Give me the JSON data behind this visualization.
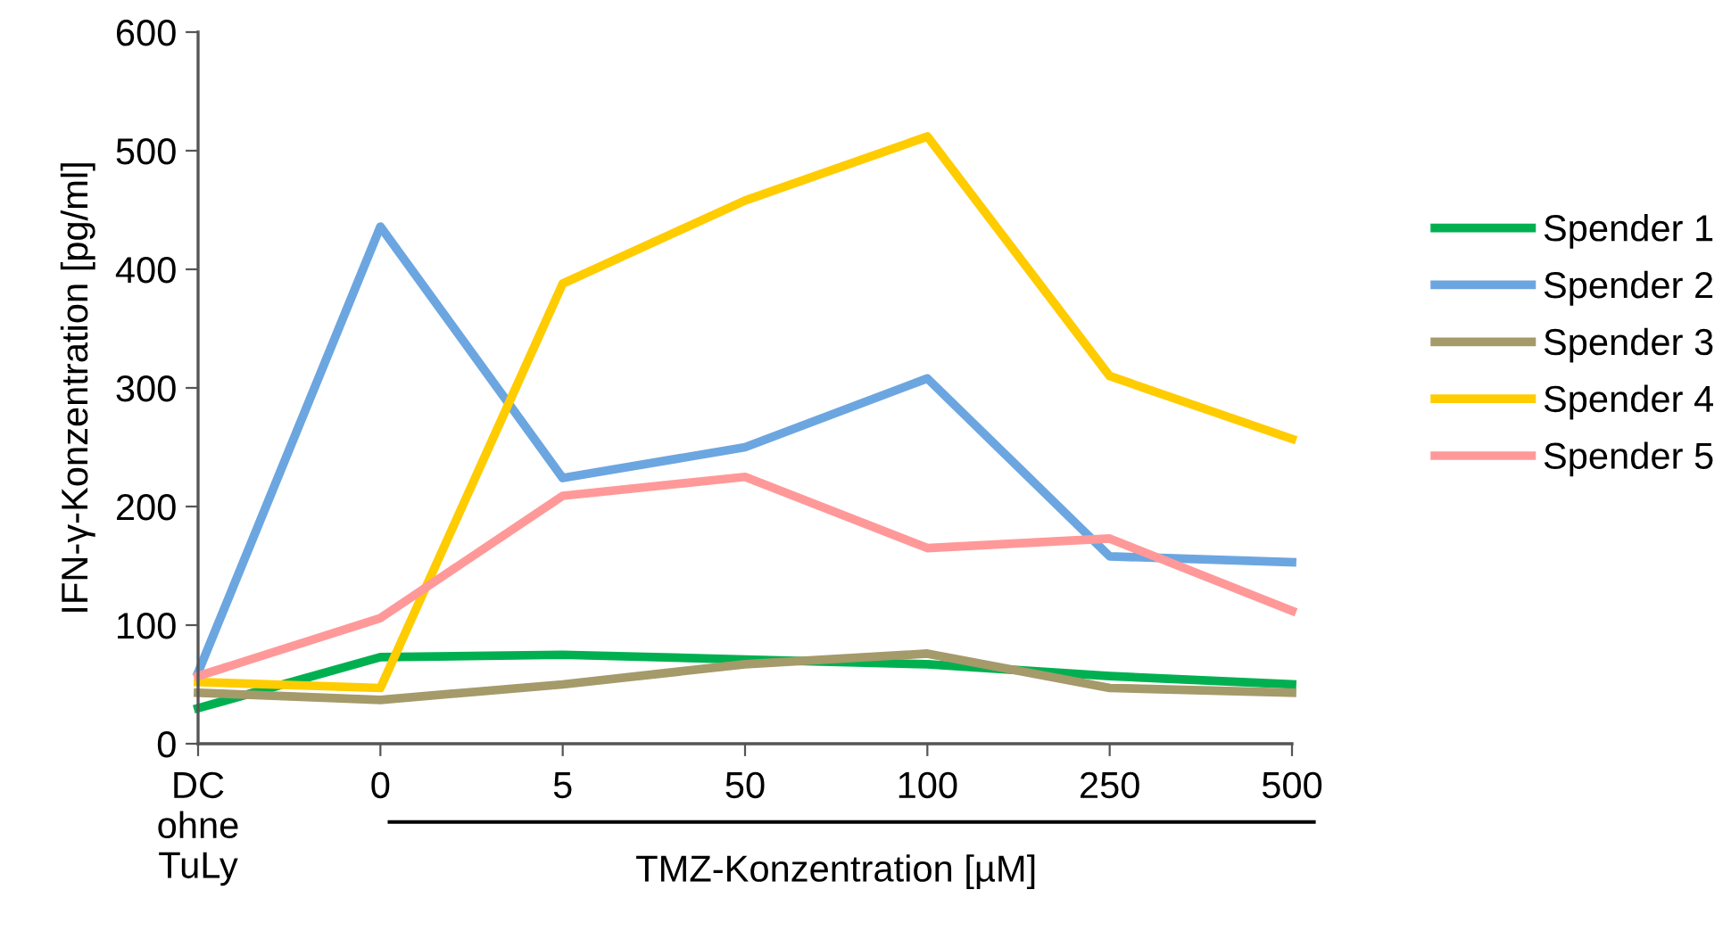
{
  "chart_data": {
    "type": "line",
    "categories": [
      "DC\nohne\nTuLy",
      "0",
      "5",
      "50",
      "100",
      "250",
      "500"
    ],
    "xlabel": "TMZ-Konzentration [µM]",
    "ylabel": "IFN-γ-Konzentration [pg/ml]",
    "ylim": [
      0,
      600
    ],
    "yticks": [
      0,
      100,
      200,
      300,
      400,
      500,
      600
    ],
    "grid": false,
    "legend": "right",
    "marker": "none",
    "line_style": "solid",
    "series": [
      {
        "name": "Spender 1",
        "color": "#00b050",
        "values": [
          30,
          73,
          75,
          71,
          67,
          57,
          50
        ]
      },
      {
        "name": "Spender 2",
        "color": "#6ca6e0",
        "values": [
          60,
          436,
          224,
          250,
          308,
          158,
          153
        ]
      },
      {
        "name": "Spender 3",
        "color": "#a59a6a",
        "values": [
          43,
          37,
          50,
          67,
          76,
          47,
          43
        ]
      },
      {
        "name": "Spender 4",
        "color": "#ffcc00",
        "values": [
          52,
          47,
          388,
          458,
          512,
          310,
          257
        ]
      },
      {
        "name": "Spender 5",
        "color": "#ff9999",
        "values": [
          57,
          106,
          209,
          225,
          165,
          173,
          112
        ]
      }
    ]
  }
}
